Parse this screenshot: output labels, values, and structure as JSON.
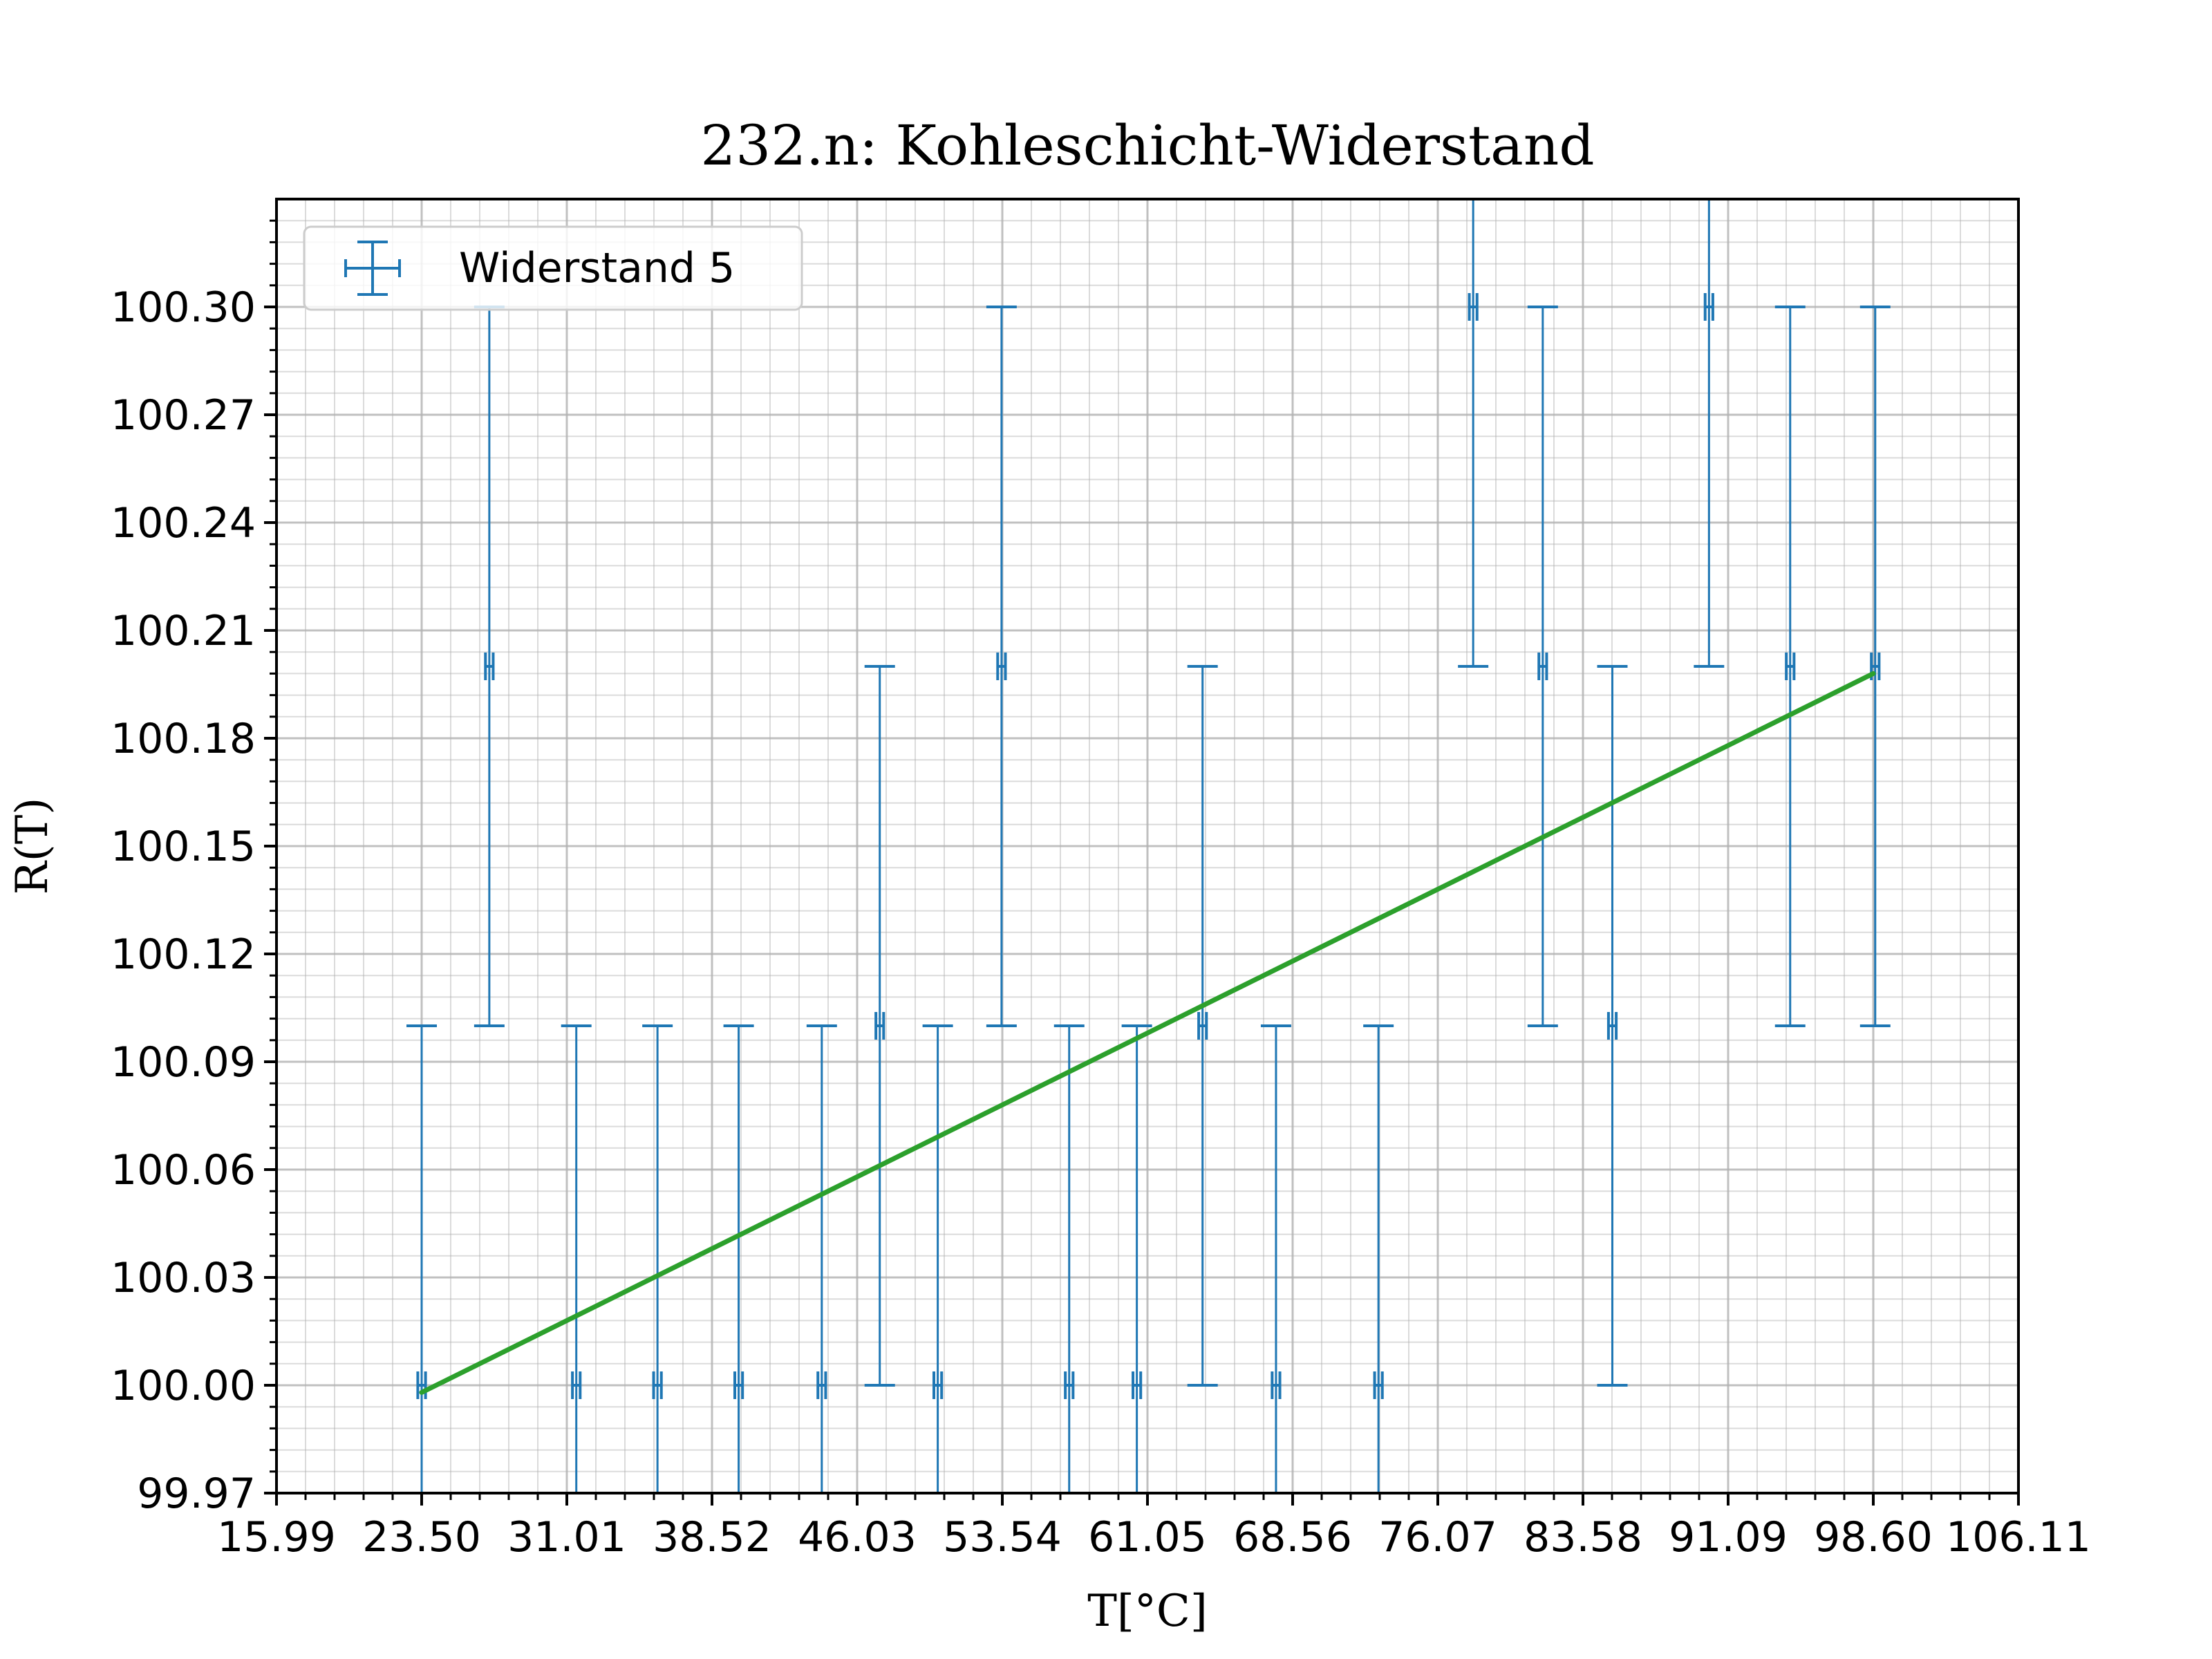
{
  "chart_data": {
    "type": "scatter",
    "title": "232.n: Kohleschicht-Widerstand",
    "xlabel": "T[°C]",
    "ylabel": "R(T)",
    "xlim": [
      15.99,
      106.11
    ],
    "ylim": [
      99.97,
      100.33
    ],
    "x_ticks": [
      "15.99",
      "23.50",
      "31.01",
      "38.52",
      "46.03",
      "53.54",
      "61.05",
      "68.56",
      "76.07",
      "83.58",
      "91.09",
      "98.60",
      "106.11"
    ],
    "y_ticks": [
      "99.97",
      "100.00",
      "100.03",
      "100.06",
      "100.09",
      "100.12",
      "100.15",
      "100.18",
      "100.21",
      "100.24",
      "100.27",
      "100.30"
    ],
    "grid": true,
    "minor_grid": true,
    "legend_position": "top-left",
    "colors": {
      "series": "#1f77b4",
      "fit": "#2ca02c",
      "grid": "#b0b0b0"
    },
    "series": [
      {
        "name": "Widerstand 5",
        "x": [
          23.5,
          27.0,
          31.5,
          35.7,
          39.9,
          44.2,
          47.2,
          50.2,
          53.5,
          57.0,
          60.5,
          63.9,
          67.7,
          73.0,
          77.9,
          81.5,
          85.1,
          90.1,
          94.3,
          98.7
        ],
        "y": [
          100.0,
          100.2,
          100.0,
          100.0,
          100.0,
          100.0,
          100.1,
          100.0,
          100.2,
          100.0,
          100.0,
          100.1,
          100.0,
          100.0,
          100.3,
          100.2,
          100.1,
          100.3,
          100.2,
          100.2
        ],
        "yerr": 0.1,
        "xerr": 0.2
      }
    ],
    "fit_line": {
      "x": [
        23.5,
        98.6
      ],
      "y": [
        99.998,
        100.198
      ]
    }
  }
}
